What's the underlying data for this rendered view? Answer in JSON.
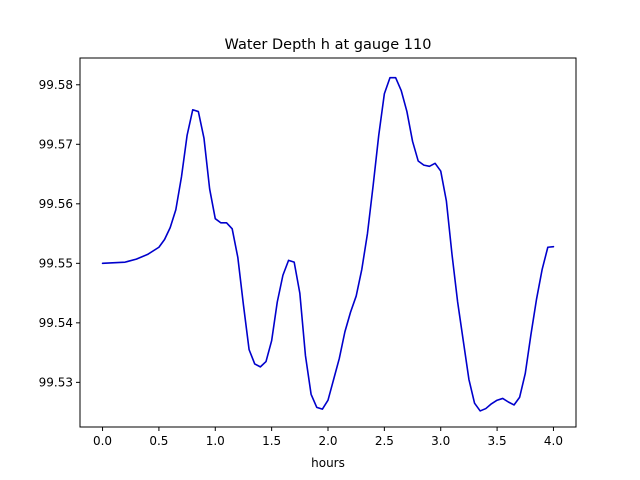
{
  "chart_data": {
    "type": "line",
    "title": "Water Depth h at gauge 110",
    "xlabel": "hours",
    "ylabel": "",
    "xlim": [
      -0.2,
      4.2
    ],
    "ylim": [
      99.5225,
      99.5845
    ],
    "xticks": [
      0.0,
      0.5,
      1.0,
      1.5,
      2.0,
      2.5,
      3.0,
      3.5,
      4.0
    ],
    "xtick_labels": [
      "0.0",
      "0.5",
      "1.0",
      "1.5",
      "2.0",
      "2.5",
      "3.0",
      "3.5",
      "4.0"
    ],
    "yticks": [
      99.53,
      99.54,
      99.55,
      99.56,
      99.57,
      99.58
    ],
    "ytick_labels": [
      "99.53",
      "99.54",
      "99.55",
      "99.56",
      "99.57",
      "99.58"
    ],
    "grid": false,
    "series": [
      {
        "color": "#0000cc",
        "x": [
          0.0,
          0.2,
          0.3,
          0.4,
          0.5,
          0.55,
          0.6,
          0.65,
          0.7,
          0.75,
          0.8,
          0.85,
          0.9,
          0.95,
          1.0,
          1.05,
          1.1,
          1.15,
          1.2,
          1.25,
          1.3,
          1.35,
          1.4,
          1.45,
          1.5,
          1.55,
          1.6,
          1.65,
          1.7,
          1.75,
          1.8,
          1.85,
          1.9,
          1.95,
          2.0,
          2.05,
          2.1,
          2.15,
          2.2,
          2.25,
          2.3,
          2.35,
          2.4,
          2.45,
          2.5,
          2.55,
          2.6,
          2.65,
          2.7,
          2.75,
          2.8,
          2.85,
          2.9,
          2.95,
          3.0,
          3.05,
          3.1,
          3.15,
          3.2,
          3.25,
          3.3,
          3.35,
          3.4,
          3.45,
          3.5,
          3.55,
          3.6,
          3.65,
          3.7,
          3.75,
          3.8,
          3.85,
          3.9,
          3.95,
          4.0
        ],
        "y": [
          99.55,
          99.5502,
          99.5507,
          99.5515,
          99.5527,
          99.554,
          99.556,
          99.559,
          99.5645,
          99.5715,
          99.5758,
          99.5755,
          99.571,
          99.5625,
          99.5575,
          99.5568,
          99.5568,
          99.5558,
          99.551,
          99.543,
          99.5355,
          99.5331,
          99.5326,
          99.5335,
          99.537,
          99.5435,
          99.548,
          99.5505,
          99.5502,
          99.545,
          99.5345,
          99.528,
          99.5258,
          99.5255,
          99.527,
          99.5305,
          99.534,
          99.5385,
          99.5418,
          99.5445,
          99.549,
          99.555,
          99.563,
          99.5715,
          99.5785,
          99.5812,
          99.5812,
          99.579,
          99.5755,
          99.5705,
          99.5672,
          99.5665,
          99.5663,
          99.5668,
          99.5655,
          99.5605,
          99.5515,
          99.5435,
          99.537,
          99.5305,
          99.5265,
          99.5252,
          99.5256,
          99.5264,
          99.527,
          99.5273,
          99.5267,
          99.5262,
          99.5275,
          99.5315,
          99.538,
          99.544,
          99.549,
          99.5527,
          99.5528
        ]
      }
    ]
  }
}
